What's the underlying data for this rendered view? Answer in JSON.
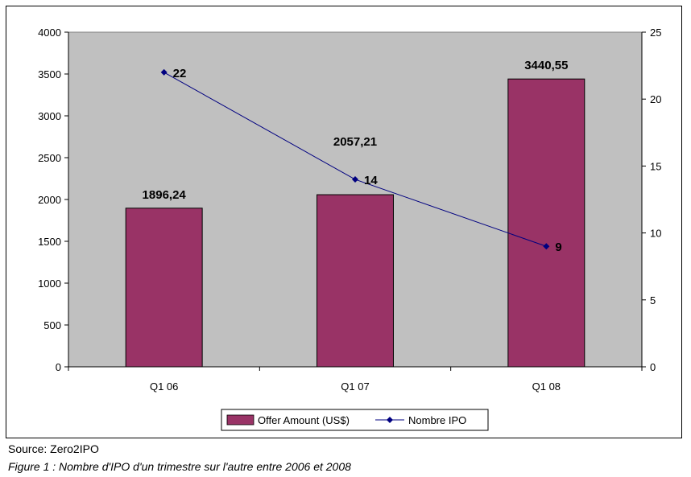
{
  "chart_data": {
    "type": "bar",
    "categories": [
      "Q1 06",
      "Q1 07",
      "Q1 08"
    ],
    "series": [
      {
        "name": "Offer Amount (US$)",
        "type": "bar",
        "axis": "left",
        "values": [
          1896.24,
          2057.21,
          3440.55
        ],
        "labels": [
          "1896,24",
          "2057,21",
          "3440,55"
        ],
        "color": "#993366"
      },
      {
        "name": "Nombre IPO",
        "type": "line",
        "axis": "right",
        "values": [
          22,
          14,
          9
        ],
        "labels": [
          "22",
          "14",
          "9"
        ],
        "color": "#000080"
      }
    ],
    "y_left": {
      "min": 0,
      "max": 4000,
      "step": 500,
      "ticks": [
        "0",
        "500",
        "1000",
        "1500",
        "2000",
        "2500",
        "3000",
        "3500",
        "4000"
      ]
    },
    "y_right": {
      "min": 0,
      "max": 25,
      "step": 5,
      "ticks": [
        "0",
        "5",
        "10",
        "15",
        "20",
        "25"
      ]
    },
    "plot_background": "#c0c0c0",
    "grid": false,
    "legend": "bottom"
  },
  "source": "Source: Zero2IPO",
  "caption": "Figure 1 : Nombre d'IPO d'un trimestre sur l'autre entre 2006 et 2008"
}
